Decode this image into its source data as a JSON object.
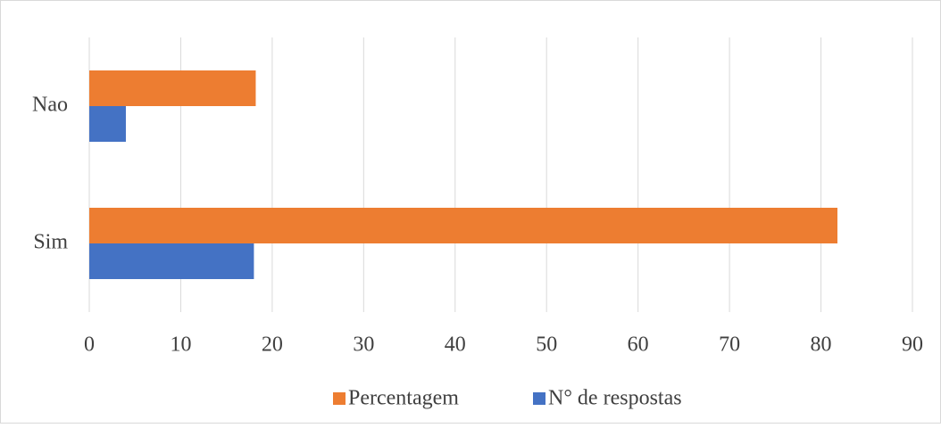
{
  "chart_data": {
    "type": "barh",
    "categories": [
      "Sim",
      "Nao"
    ],
    "series": [
      {
        "name": "Percentagem",
        "color": "#ed7d31",
        "values": [
          81.8,
          18.2
        ]
      },
      {
        "name": "N° de respostas",
        "color": "#4472c4",
        "values": [
          18,
          4
        ]
      }
    ],
    "xlim": [
      0,
      90
    ],
    "xticks": [
      0,
      10,
      20,
      30,
      40,
      50,
      60,
      70,
      80,
      90
    ],
    "grid": true,
    "legend": "bottom"
  }
}
